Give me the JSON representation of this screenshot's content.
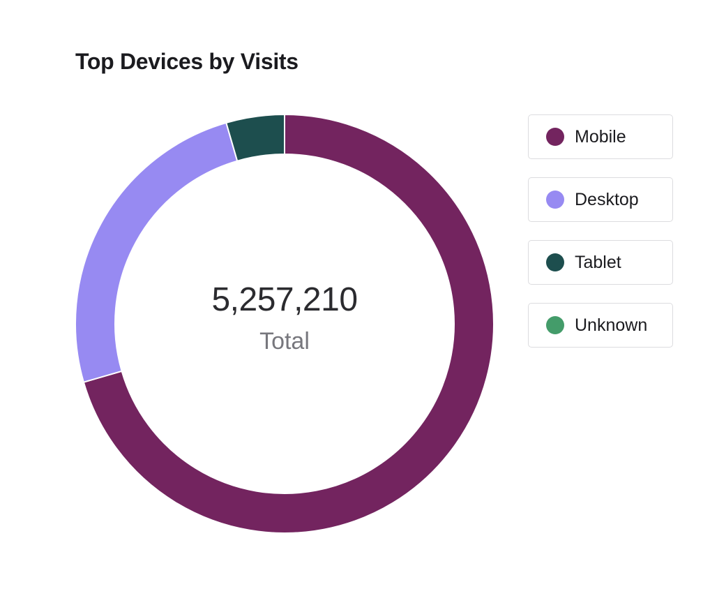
{
  "chart_data": {
    "type": "pie",
    "title": "Top Devices by Visits",
    "total_value": "5,257,210",
    "total_label": "Total",
    "legend_position": "right",
    "series": [
      {
        "name": "Mobile",
        "value": 70.5,
        "color": "#73245f"
      },
      {
        "name": "Desktop",
        "value": 25.0,
        "color": "#978af2"
      },
      {
        "name": "Tablet",
        "value": 4.5,
        "color": "#1d4e4e"
      },
      {
        "name": "Unknown",
        "value": 0,
        "color": "#449c6a"
      }
    ]
  }
}
